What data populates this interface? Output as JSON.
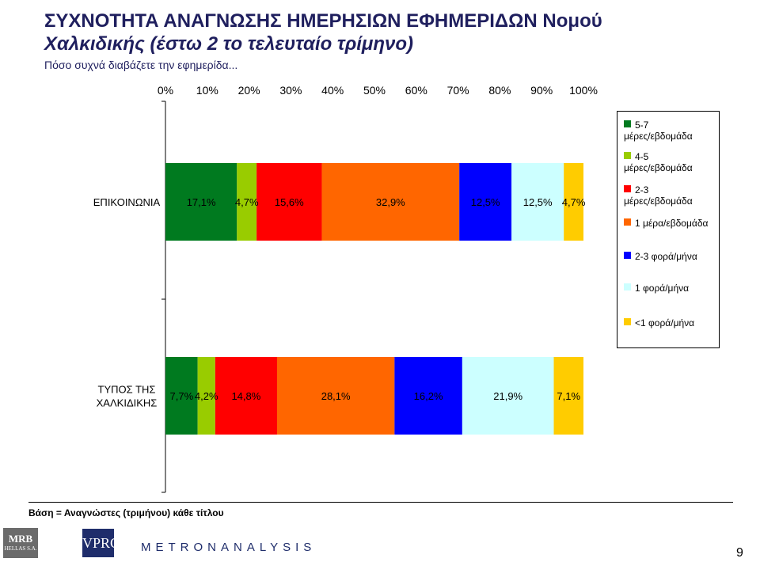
{
  "title_line1": "ΣΥΧΝΟΤΗΤΑ ΑΝΑΓΝΩΣΗΣ ΗΜΕΡΗΣΙΩΝ ΕΦΗΜΕΡΙΔΩΝ Νομού",
  "title_line2": "Χαλκιδικής (έστω 2 το τελευταίο τρίμηνο)",
  "subtitle": "Πόσο συχνά διαβάζετε την εφημερίδα...",
  "base_note": "Βάση = Αναγνώστες (τριμήνου) κάθε τίτλου",
  "page_number": "9",
  "logos": {
    "mrb": "MRB",
    "mrb_sub": "HELLAS S.A.",
    "vprc": "VPRC",
    "metron": "METRONANALYSIS"
  },
  "chart_data": {
    "type": "bar",
    "orientation": "horizontal-stacked-100",
    "title": "ΣΥΧΝΟΤΗΤΑ ΑΝΑΓΝΩΣΗΣ ΗΜΕΡΗΣΙΩΝ ΕΦΗΜΕΡΙΔΩΝ Νομού Χαλκιδικής (έστω 2 το τελευταίο τρίμηνο)",
    "subtitle": "Πόσο συχνά διαβάζετε την εφημερίδα...",
    "categories": [
      "ΕΠΙΚΟΙΝΩΝΙΑ",
      "ΤΥΠΟΣ ΤΗΣ ΧΑΛΚΙΔΙΚΗΣ"
    ],
    "xlim": [
      0,
      100
    ],
    "x_ticks": [
      "0%",
      "10%",
      "20%",
      "30%",
      "40%",
      "50%",
      "60%",
      "70%",
      "80%",
      "90%",
      "100%"
    ],
    "legend_position": "right",
    "series": [
      {
        "name": "5-7 μέρες/εβδομάδα",
        "color": "#007a1f",
        "values": [
          17.1,
          7.7
        ],
        "labels": [
          "17,1%",
          "7,7%"
        ]
      },
      {
        "name": "4-5 μέρες/εβδομάδα",
        "color": "#99cc00",
        "values": [
          4.7,
          4.2
        ],
        "labels": [
          "4,7%",
          "4,2%"
        ]
      },
      {
        "name": "2-3 μέρες/εβδομάδα",
        "color": "#ff0000",
        "values": [
          15.6,
          14.8
        ],
        "labels": [
          "15,6%",
          "14,8%"
        ]
      },
      {
        "name": "1 μέρα/εβδομάδα",
        "color": "#ff6600",
        "values": [
          32.9,
          28.1
        ],
        "labels": [
          "32,9%",
          "28,1%"
        ]
      },
      {
        "name": "2-3 φορά/μήνα",
        "color": "#0000ff",
        "values": [
          12.5,
          16.2
        ],
        "labels": [
          "12,5%",
          "16,2%"
        ]
      },
      {
        "name": "1 φορά/μήνα",
        "color": "#ccffff",
        "values": [
          12.5,
          21.9
        ],
        "labels": [
          "12,5%",
          "21,9%"
        ]
      },
      {
        "name": "<1 φορά/μήνα",
        "color": "#ffcc00",
        "values": [
          4.7,
          7.1
        ],
        "labels": [
          "4,7%",
          "7,1%"
        ]
      }
    ]
  }
}
